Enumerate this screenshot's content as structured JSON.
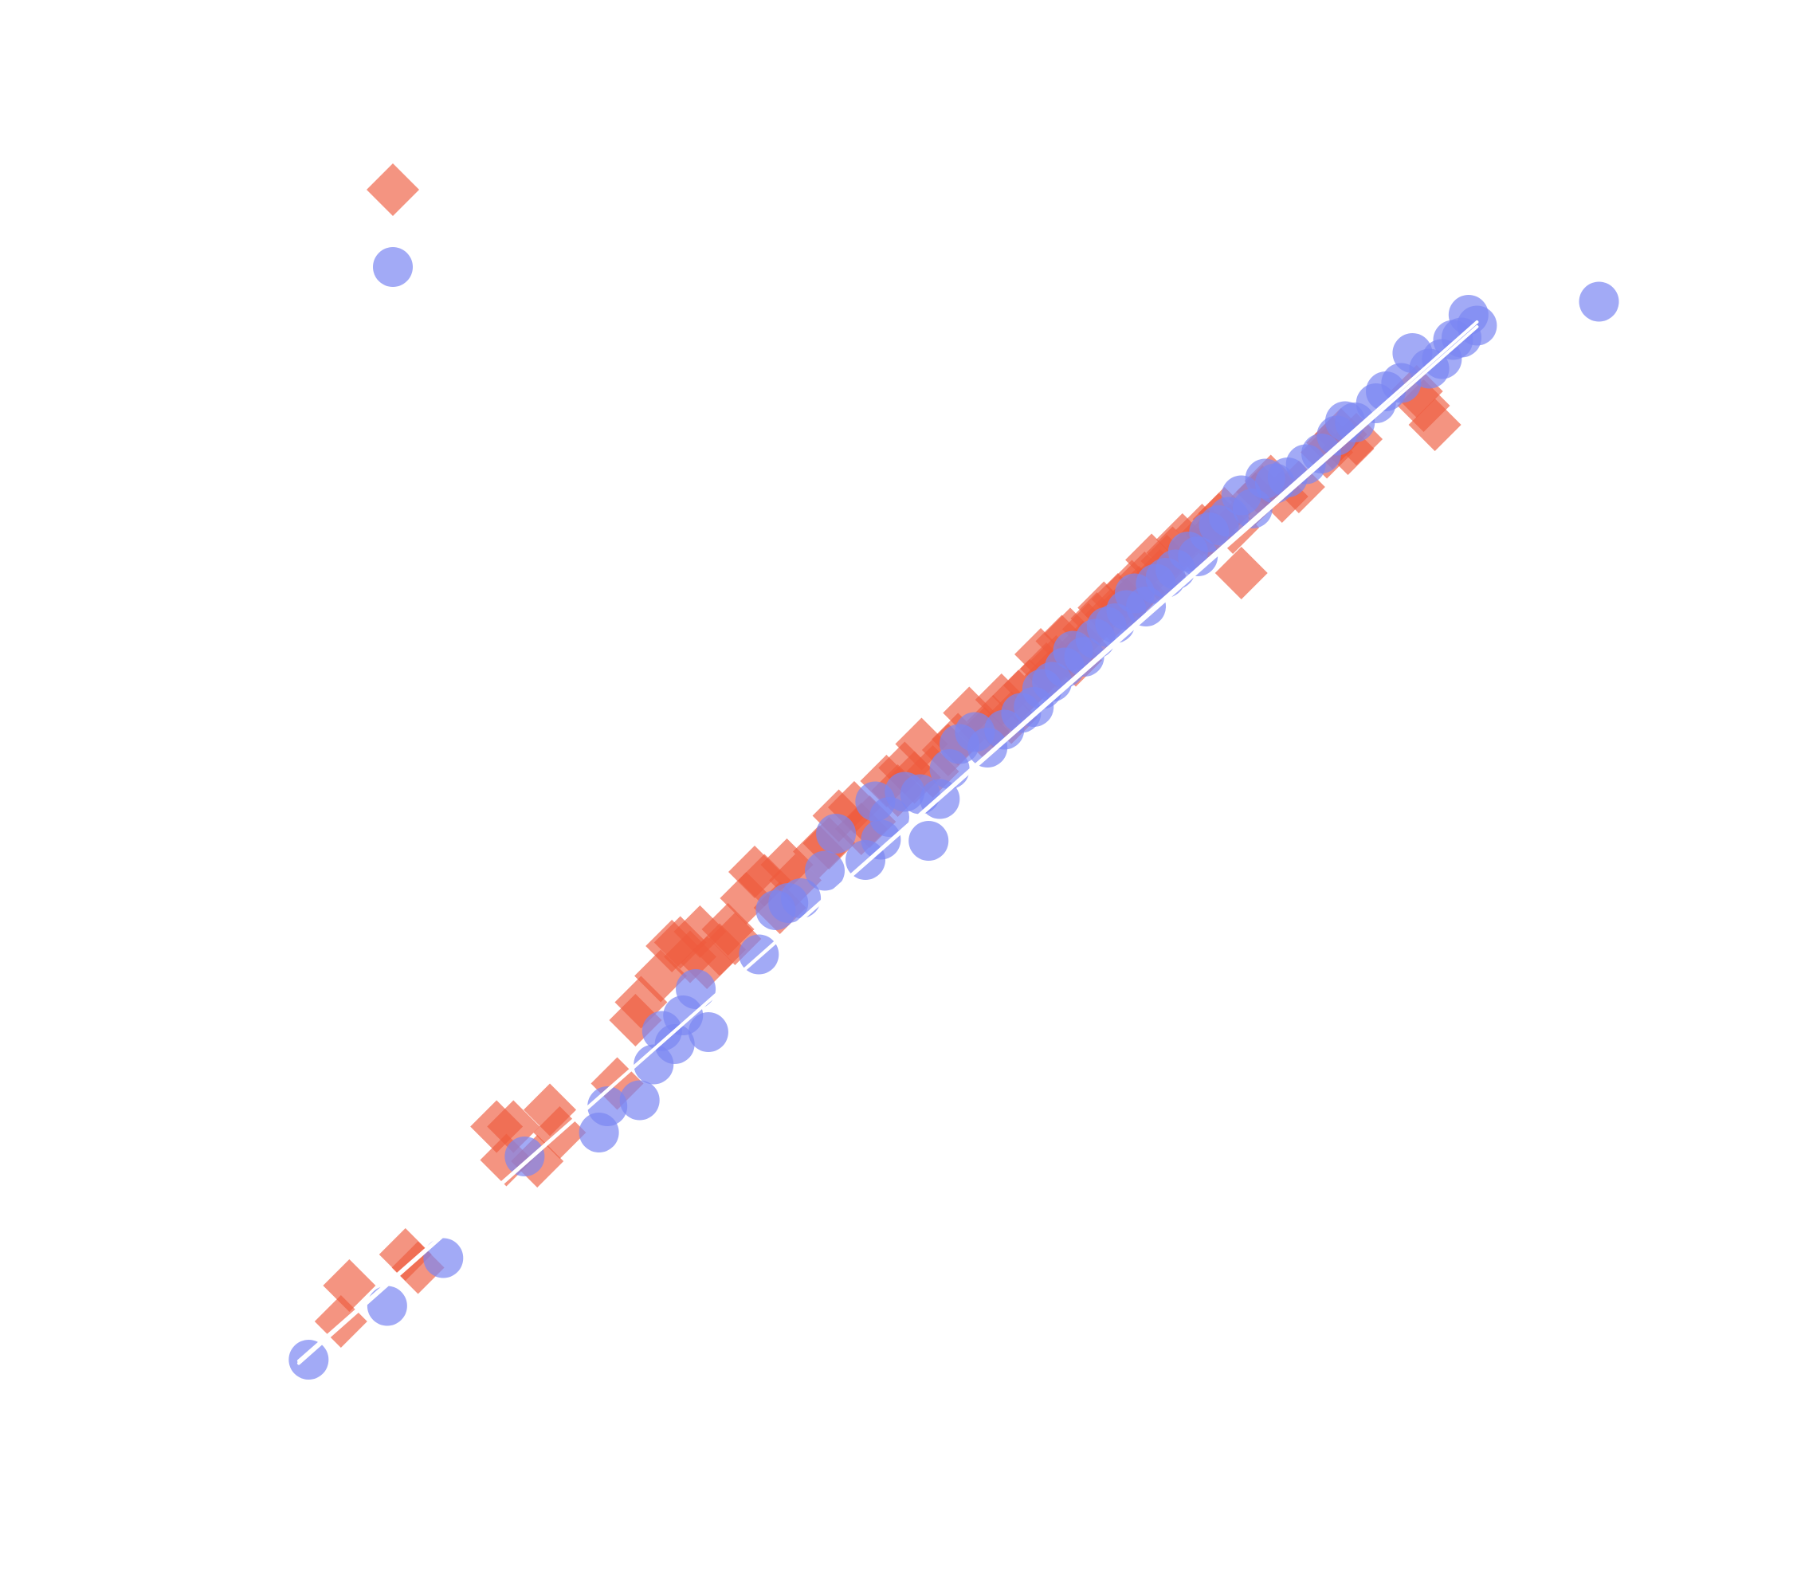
{
  "chart_data": {
    "type": "scatter",
    "title": "",
    "xlabel": "",
    "ylabel": "",
    "xlim": [
      0,
      100
    ],
    "ylim": [
      0,
      100
    ],
    "grid": false,
    "axes_visible": false,
    "legend": {
      "position": "top-left",
      "entries_shown": [
        "diamond",
        "circle"
      ]
    },
    "series": [
      {
        "marker": "diamond",
        "color": "#ee5a3e",
        "opacity": 0.65,
        "x": [
          3.0,
          3.6,
          7.6,
          8.5,
          14.1,
          14.8,
          15.3,
          17.0,
          17.9,
          18.6,
          22.7,
          24.0,
          24.4,
          25.8,
          26.6,
          27.2,
          27.9,
          28.6,
          29.1,
          30.0,
          30.6,
          31.1,
          31.9,
          32.5,
          33.2,
          34.3,
          34.8,
          35.4,
          37.1,
          37.8,
          38.5,
          39.6,
          40.1,
          40.7,
          41.9,
          42.7,
          43.2,
          43.9,
          44.4,
          45.2,
          46.3,
          47.0,
          47.8,
          48.9,
          49.5,
          50.1,
          50.8,
          51.3,
          52.1,
          52.9,
          53.3,
          53.6,
          54.0,
          54.4,
          55.0,
          55.4,
          55.9,
          56.3,
          56.9,
          57.4,
          57.9,
          58.4,
          59.0,
          59.4,
          59.9,
          60.3,
          60.8,
          61.4,
          61.9,
          62.3,
          63.0,
          63.8,
          64.4,
          65.1,
          65.6,
          66.0,
          66.6,
          67.2,
          68.2,
          68.7,
          69.3,
          70.1,
          71.3,
          73.3,
          73.7,
          74.3,
          74.8,
          75.4,
          79.7,
          80.2,
          81.0
        ],
        "y": [
          3.8,
          6.8,
          9.4,
          8.3,
          20.1,
          17.3,
          20.1,
          17.2,
          21.5,
          19.6,
          23.7,
          29.0,
          30.5,
          32.7,
          35.2,
          35.5,
          34.3,
          36.4,
          33.8,
          34.9,
          36.6,
          35.8,
          39.2,
          41.4,
          40.7,
          38.4,
          42.0,
          40.7,
          43.1,
          43.8,
          46.1,
          46.8,
          45.0,
          45.6,
          49.0,
          48.2,
          50.1,
          49.3,
          52.1,
          49.8,
          51.6,
          52.5,
          54.7,
          53.0,
          54.0,
          55.8,
          54.3,
          56.1,
          57.0,
          59.6,
          58.4,
          57.8,
          59.0,
          60.7,
          61.3,
          59.1,
          60.2,
          61.7,
          62.6,
          63.5,
          62.9,
          64.2,
          63.8,
          65.3,
          64.8,
          66.0,
          67.5,
          66.2,
          67.4,
          68.1,
          69.2,
          68.6,
          70.0,
          69.6,
          70.9,
          71.4,
          70.2,
          66.4,
          72.6,
          73.2,
          74.1,
          72.8,
          73.6,
          76.5,
          77.3,
          78.0,
          76.8,
          77.6,
          81.6,
          80.4,
          78.8
        ]
      },
      {
        "marker": "circle",
        "color": "#7b86f2",
        "opacity": 0.7,
        "x": [
          0.7,
          6.3,
          10.3,
          16.1,
          21.4,
          22.0,
          24.3,
          25.3,
          25.9,
          26.8,
          27.4,
          28.3,
          29.2,
          32.8,
          34.0,
          34.9,
          35.8,
          37.5,
          38.3,
          40.4,
          41.1,
          41.5,
          42.1,
          43.2,
          44.3,
          44.9,
          45.7,
          46.4,
          47.1,
          48.2,
          49.1,
          50.3,
          51.5,
          52.4,
          53.0,
          53.7,
          54.6,
          55.2,
          56.0,
          56.8,
          57.6,
          58.2,
          59.0,
          59.6,
          60.4,
          61.1,
          61.8,
          62.5,
          63.4,
          64.1,
          64.9,
          65.6,
          66.3,
          67.2,
          68.0,
          68.9,
          69.6,
          70.5,
          71.8,
          72.9,
          74.0,
          74.6,
          75.3,
          76.8,
          77.5,
          78.6,
          79.4,
          80.6,
          81.5,
          82.3,
          82.9,
          83.4,
          84.0,
          92.7
        ],
        "y": [
          0.6,
          5.1,
          9.1,
          17.6,
          19.6,
          21.8,
          22.3,
          25.3,
          28.1,
          27.0,
          29.4,
          31.6,
          28.0,
          34.5,
          38.2,
          38.8,
          39.2,
          41.5,
          44.6,
          42.4,
          47.3,
          44.1,
          46.0,
          48.1,
          47.9,
          44.0,
          47.5,
          50.0,
          52.1,
          53.1,
          51.8,
          53.3,
          54.7,
          55.2,
          56.7,
          57.3,
          58.5,
          59.9,
          59.4,
          60.9,
          61.9,
          62.2,
          63.3,
          64.7,
          63.6,
          65.5,
          66.0,
          66.7,
          68.2,
          67.8,
          69.8,
          70.4,
          71.1,
          72.9,
          71.8,
          74.3,
          73.9,
          74.4,
          75.5,
          76.4,
          77.9,
          79.1,
          79.0,
          80.6,
          81.6,
          82.3,
          84.8,
          83.5,
          84.3,
          85.9,
          86.1,
          88.0,
          87.1,
          89.1
        ]
      }
    ],
    "trendlines": [
      {
        "series_index": 0,
        "x": [
          0,
          84
        ],
        "y": [
          0.5,
          87.0
        ],
        "color": "#ffffff"
      },
      {
        "series_index": 1,
        "x": [
          0,
          84
        ],
        "y": [
          0.3,
          87.4
        ],
        "color": "#ffffff"
      }
    ]
  }
}
